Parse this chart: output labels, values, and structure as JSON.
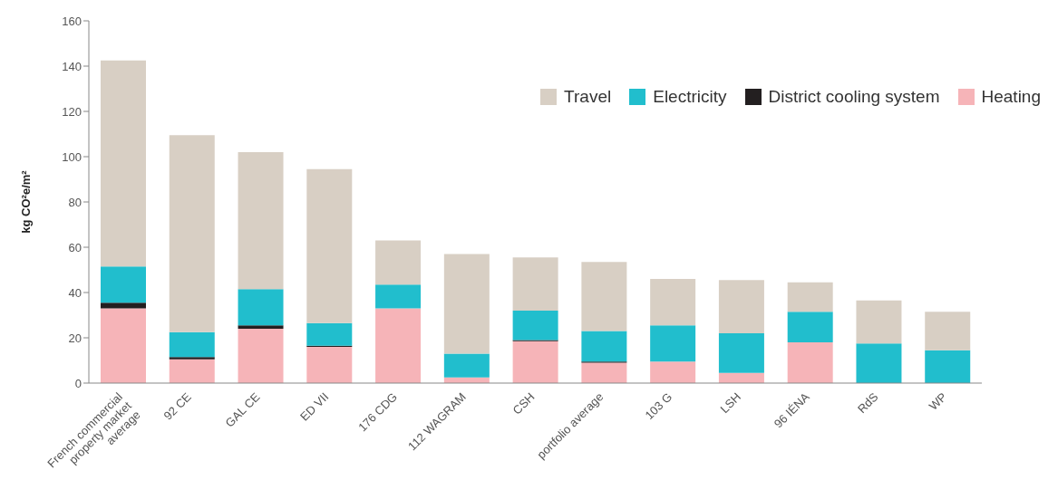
{
  "chart_data": {
    "type": "bar",
    "stacked": true,
    "ylabel": "kg CO²e/m²",
    "categories": [
      "French commercial property market average",
      "92 CE",
      "GAL CE",
      "ED VII",
      "176 CDG",
      "112 WAGRAM",
      "CSH",
      "portfolio average",
      "103 G",
      "LSH",
      "96 IÉNA",
      "RdS",
      "WP"
    ],
    "series": [
      {
        "name": "Heating",
        "color": "#f6b4b8",
        "values": [
          33,
          10.5,
          24,
          16,
          33,
          2.5,
          18.5,
          9,
          9.5,
          4.5,
          18,
          0,
          0
        ]
      },
      {
        "name": "District cooling system",
        "color": "#231f20",
        "values": [
          2.5,
          1,
          1.5,
          0.5,
          0,
          0,
          0.5,
          0.5,
          0,
          0,
          0,
          0,
          0
        ]
      },
      {
        "name": "Electricity",
        "color": "#21becd",
        "values": [
          16,
          11,
          16,
          10,
          10.5,
          10.5,
          13,
          13.5,
          16,
          17.5,
          13.5,
          17.5,
          14.5
        ]
      },
      {
        "name": "Travel",
        "color": "#d8cfc4",
        "values": [
          91,
          87,
          60.5,
          68,
          19.5,
          44,
          23.5,
          30.5,
          20.5,
          23.5,
          13,
          19,
          17
        ]
      }
    ],
    "ylim": [
      0,
      160
    ],
    "yticks": [
      0,
      20,
      40,
      60,
      80,
      100,
      120,
      140,
      160
    ],
    "grid": false,
    "legend": "top right"
  }
}
